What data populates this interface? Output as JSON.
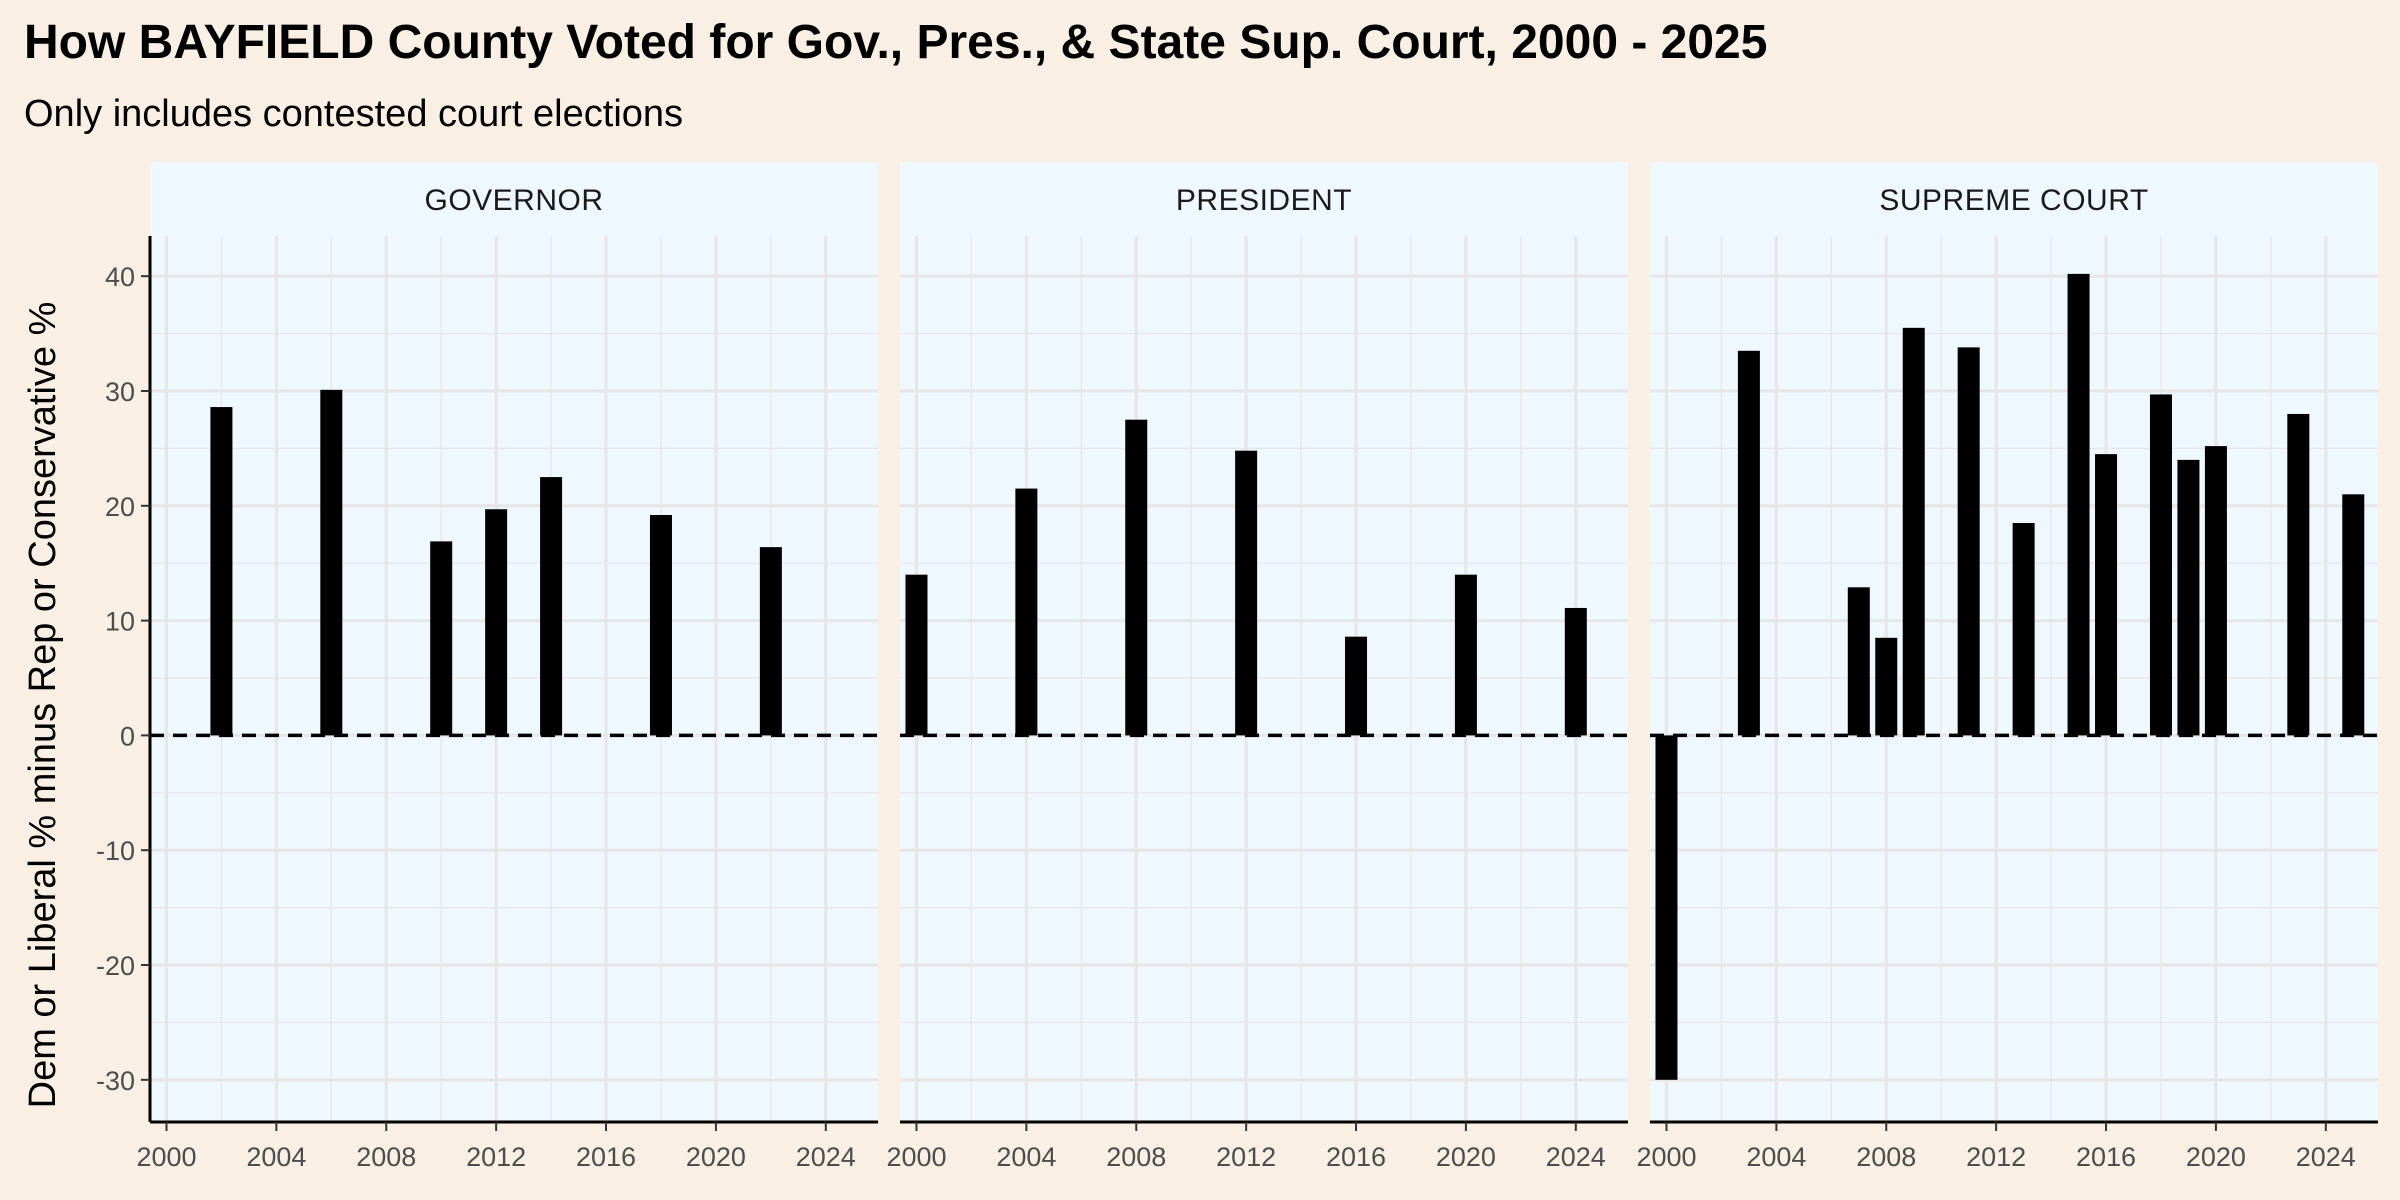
{
  "title": "How BAYFIELD County Voted for Gov., Pres., & State Sup. Court, 2000 - 2025",
  "subtitle": "Only includes contested court elections",
  "colors": {
    "background": "#faefe5",
    "panel": "#eff7ff",
    "bar": "#000000",
    "grid": "#e6e6e6"
  },
  "chart_data": {
    "type": "bar",
    "ylabel": "Dem or Liberal % minus Rep or Conservative %",
    "ylim": [
      -33.5,
      43.5
    ],
    "xlim": [
      1999.4,
      2025.9
    ],
    "x_ticks": [
      "2000",
      "2004",
      "2008",
      "2012",
      "2016",
      "2020",
      "2024"
    ],
    "y_ticks": [
      "40",
      "30",
      "20",
      "10",
      "0",
      "-10",
      "-20",
      "-30"
    ],
    "reference_line": 0,
    "grid": true,
    "facets": [
      {
        "name": "GOVERNOR",
        "x": [
          2002,
          2006,
          2010,
          2012,
          2014,
          2018,
          2022
        ],
        "values": [
          28.6,
          30.1,
          16.9,
          19.7,
          22.5,
          19.2,
          16.4
        ]
      },
      {
        "name": "PRESIDENT",
        "x": [
          2000,
          2004,
          2008,
          2012,
          2016,
          2020,
          2024
        ],
        "values": [
          14.0,
          21.5,
          27.5,
          24.8,
          8.6,
          14.0,
          11.1
        ]
      },
      {
        "name": "SUPREME COURT",
        "x": [
          2000,
          2003,
          2007,
          2008,
          2009,
          2011,
          2013,
          2015,
          2016,
          2018,
          2019,
          2020,
          2023,
          2025
        ],
        "values": [
          -30.0,
          33.5,
          12.9,
          8.5,
          35.5,
          33.8,
          18.5,
          40.2,
          24.5,
          29.7,
          24.0,
          25.2,
          28.0,
          21.0
        ]
      }
    ]
  }
}
